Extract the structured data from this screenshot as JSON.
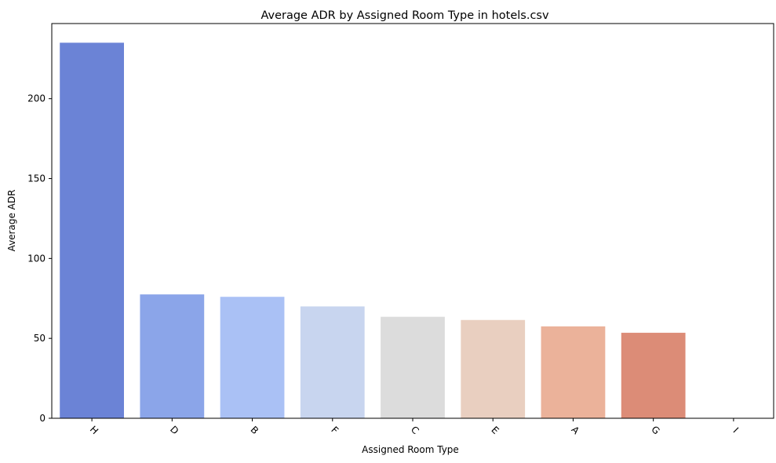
{
  "chart_data": {
    "type": "bar",
    "title": "Average ADR by Assigned Room Type in hotels.csv",
    "xlabel": "Assigned Room Type",
    "ylabel": "Average ADR",
    "categories": [
      "H",
      "D",
      "B",
      "F",
      "C",
      "E",
      "A",
      "G",
      "I"
    ],
    "values": [
      235,
      77.5,
      76,
      70,
      63.5,
      61.5,
      57.5,
      53.5,
      0
    ],
    "colors": [
      "#6b83d6",
      "#8ba5e9",
      "#aac1f5",
      "#c8d5ef",
      "#dcdcdc",
      "#e9cfc0",
      "#ebb29a",
      "#dc8c77",
      "#b40426"
    ],
    "ylim": [
      0,
      247
    ],
    "yticks": [
      0,
      50,
      100,
      150,
      200
    ],
    "x_tick_rotation": 45,
    "grid": false,
    "legend": "none"
  }
}
